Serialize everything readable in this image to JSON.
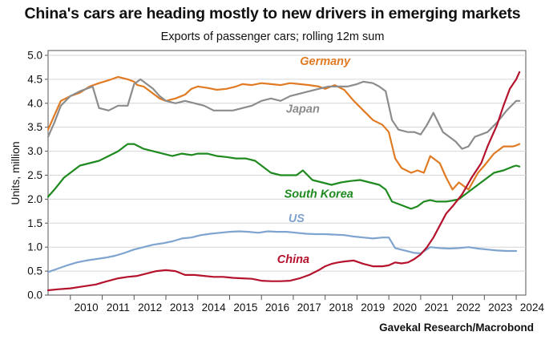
{
  "chart_data": {
    "type": "line",
    "title": "China's cars are heading mostly to new drivers in emerging markets",
    "subtitle": "Exports of passenger cars; rolling 12m sum",
    "ylabel": "Units, million",
    "source": "Gavekal Research/Macrobond",
    "ylim": [
      0.0,
      5.1
    ],
    "yticks": [
      0.0,
      0.5,
      1.0,
      1.5,
      2.0,
      2.5,
      3.0,
      3.5,
      4.0,
      4.5,
      5.0
    ],
    "ytick_labels": [
      "0.0",
      "0.5",
      "1.0",
      "1.5",
      "2.0",
      "2.5",
      "3.0",
      "3.5",
      "4.0",
      "4.5",
      "5.0"
    ],
    "xlim": [
      2009.3,
      2024.3
    ],
    "xticks": [
      2010,
      2011,
      2012,
      2013,
      2014,
      2015,
      2016,
      2017,
      2018,
      2019,
      2020,
      2021,
      2022,
      2023,
      2024
    ],
    "xtick_labels": [
      "2010",
      "2011",
      "2012",
      "2013",
      "2014",
      "2015",
      "2016",
      "2017",
      "2018",
      "2019",
      "2020",
      "2021",
      "2022",
      "2023",
      "2024"
    ],
    "grid": true,
    "series": [
      {
        "name": "Germany",
        "color": "#e07b24",
        "x": [
          2009.3,
          2009.5,
          2009.7,
          2010.0,
          2010.3,
          2010.6,
          2010.9,
          2011.2,
          2011.5,
          2011.8,
          2012.0,
          2012.1,
          2012.3,
          2012.5,
          2012.8,
          2013.0,
          2013.3,
          2013.6,
          2013.8,
          2014.0,
          2014.3,
          2014.6,
          2014.9,
          2015.2,
          2015.4,
          2015.7,
          2016.0,
          2016.3,
          2016.6,
          2016.9,
          2017.2,
          2017.5,
          2017.8,
          2018.0,
          2018.3,
          2018.6,
          2018.9,
          2019.2,
          2019.5,
          2019.8,
          2020.0,
          2020.2,
          2020.4,
          2020.7,
          2020.9,
          2021.1,
          2021.3,
          2021.6,
          2021.8,
          2022.0,
          2022.2,
          2022.5,
          2022.8,
          2023.0,
          2023.3,
          2023.6,
          2023.9,
          2024.0,
          2024.1
        ],
        "values": [
          3.45,
          3.75,
          4.05,
          4.15,
          4.22,
          4.35,
          4.42,
          4.48,
          4.55,
          4.5,
          4.45,
          4.38,
          4.35,
          4.25,
          4.1,
          4.05,
          4.1,
          4.18,
          4.3,
          4.35,
          4.32,
          4.28,
          4.3,
          4.35,
          4.4,
          4.38,
          4.42,
          4.4,
          4.38,
          4.42,
          4.4,
          4.38,
          4.35,
          4.3,
          4.38,
          4.28,
          4.05,
          3.85,
          3.65,
          3.55,
          3.4,
          2.85,
          2.65,
          2.55,
          2.6,
          2.55,
          2.9,
          2.75,
          2.45,
          2.2,
          2.35,
          2.2,
          2.55,
          2.7,
          2.95,
          3.1,
          3.1,
          3.12,
          3.15
        ]
      },
      {
        "name": "Japan",
        "color": "#8c8c8c",
        "x": [
          2009.3,
          2009.5,
          2009.7,
          2010.0,
          2010.3,
          2010.7,
          2010.9,
          2011.2,
          2011.5,
          2011.8,
          2012.0,
          2012.2,
          2012.4,
          2012.6,
          2012.8,
          2013.0,
          2013.3,
          2013.6,
          2013.9,
          2014.2,
          2014.5,
          2014.8,
          2015.1,
          2015.4,
          2015.7,
          2016.0,
          2016.3,
          2016.6,
          2016.9,
          2017.2,
          2017.5,
          2017.8,
          2018.1,
          2018.4,
          2018.7,
          2019.0,
          2019.2,
          2019.5,
          2019.7,
          2019.9,
          2020.1,
          2020.3,
          2020.6,
          2020.8,
          2021.0,
          2021.2,
          2021.4,
          2021.7,
          2021.9,
          2022.1,
          2022.3,
          2022.5,
          2022.7,
          2022.9,
          2023.1,
          2023.4,
          2023.7,
          2024.0,
          2024.1
        ],
        "values": [
          3.3,
          3.6,
          3.95,
          4.15,
          4.25,
          4.35,
          3.9,
          3.85,
          3.95,
          3.95,
          4.4,
          4.5,
          4.4,
          4.3,
          4.15,
          4.05,
          4.0,
          4.05,
          4.0,
          3.95,
          3.85,
          3.85,
          3.85,
          3.9,
          3.95,
          4.05,
          4.1,
          4.05,
          4.15,
          4.2,
          4.25,
          4.3,
          4.35,
          4.35,
          4.35,
          4.4,
          4.45,
          4.42,
          4.35,
          4.25,
          3.65,
          3.45,
          3.4,
          3.4,
          3.35,
          3.55,
          3.8,
          3.4,
          3.3,
          3.2,
          3.05,
          3.1,
          3.3,
          3.35,
          3.4,
          3.6,
          3.85,
          4.05,
          4.05
        ]
      },
      {
        "name": "South Korea",
        "color": "#1f8a1f",
        "x": [
          2009.3,
          2009.5,
          2009.8,
          2010.0,
          2010.3,
          2010.6,
          2010.9,
          2011.2,
          2011.5,
          2011.8,
          2012.0,
          2012.3,
          2012.6,
          2012.9,
          2013.2,
          2013.5,
          2013.8,
          2014.0,
          2014.3,
          2014.6,
          2014.9,
          2015.2,
          2015.5,
          2015.8,
          2016.0,
          2016.3,
          2016.6,
          2016.9,
          2017.1,
          2017.3,
          2017.6,
          2017.9,
          2018.2,
          2018.5,
          2018.8,
          2019.1,
          2019.4,
          2019.7,
          2019.9,
          2020.1,
          2020.3,
          2020.5,
          2020.7,
          2020.9,
          2021.1,
          2021.3,
          2021.5,
          2021.8,
          2022.0,
          2022.2,
          2022.4,
          2022.7,
          2023.0,
          2023.3,
          2023.6,
          2023.9,
          2024.0,
          2024.1
        ],
        "values": [
          2.05,
          2.2,
          2.45,
          2.55,
          2.7,
          2.75,
          2.8,
          2.9,
          3.0,
          3.15,
          3.15,
          3.05,
          3.0,
          2.95,
          2.9,
          2.95,
          2.92,
          2.95,
          2.95,
          2.9,
          2.88,
          2.85,
          2.85,
          2.8,
          2.7,
          2.55,
          2.5,
          2.5,
          2.5,
          2.6,
          2.4,
          2.35,
          2.3,
          2.35,
          2.38,
          2.4,
          2.35,
          2.3,
          2.2,
          1.95,
          1.9,
          1.85,
          1.8,
          1.85,
          1.95,
          1.98,
          1.95,
          1.95,
          1.97,
          2.0,
          2.1,
          2.25,
          2.4,
          2.55,
          2.6,
          2.68,
          2.7,
          2.68
        ]
      },
      {
        "name": "US",
        "color": "#7fa4cf",
        "x": [
          2009.3,
          2009.6,
          2009.9,
          2010.2,
          2010.5,
          2010.8,
          2011.1,
          2011.4,
          2011.7,
          2012.0,
          2012.3,
          2012.6,
          2012.9,
          2013.2,
          2013.5,
          2013.8,
          2014.1,
          2014.4,
          2014.7,
          2015.0,
          2015.3,
          2015.6,
          2015.9,
          2016.2,
          2016.5,
          2016.8,
          2017.1,
          2017.4,
          2017.7,
          2018.0,
          2018.3,
          2018.6,
          2018.9,
          2019.2,
          2019.5,
          2019.8,
          2020.0,
          2020.2,
          2020.5,
          2020.8,
          2021.0,
          2021.3,
          2021.6,
          2021.9,
          2022.2,
          2022.5,
          2022.8,
          2023.1,
          2023.4,
          2023.7,
          2024.0
        ],
        "values": [
          0.48,
          0.55,
          0.62,
          0.68,
          0.72,
          0.75,
          0.78,
          0.82,
          0.88,
          0.95,
          1.0,
          1.05,
          1.08,
          1.12,
          1.18,
          1.2,
          1.25,
          1.28,
          1.3,
          1.32,
          1.33,
          1.32,
          1.3,
          1.33,
          1.32,
          1.32,
          1.3,
          1.28,
          1.27,
          1.27,
          1.26,
          1.25,
          1.22,
          1.2,
          1.18,
          1.2,
          1.2,
          0.98,
          0.93,
          0.88,
          0.87,
          1.0,
          0.98,
          0.97,
          0.98,
          1.0,
          0.97,
          0.95,
          0.93,
          0.92,
          0.92
        ]
      },
      {
        "name": "China",
        "color": "#b5122d",
        "x": [
          2009.3,
          2009.6,
          2010.0,
          2010.4,
          2010.8,
          2011.1,
          2011.5,
          2011.8,
          2012.1,
          2012.4,
          2012.7,
          2013.0,
          2013.3,
          2013.6,
          2013.9,
          2014.2,
          2014.5,
          2014.8,
          2015.1,
          2015.4,
          2015.7,
          2016.0,
          2016.3,
          2016.6,
          2016.9,
          2017.2,
          2017.5,
          2017.8,
          2018.0,
          2018.2,
          2018.4,
          2018.6,
          2018.9,
          2019.2,
          2019.5,
          2019.8,
          2020.0,
          2020.2,
          2020.4,
          2020.6,
          2020.8,
          2021.0,
          2021.2,
          2021.4,
          2021.6,
          2021.8,
          2022.0,
          2022.3,
          2022.6,
          2022.9,
          2023.1,
          2023.4,
          2023.6,
          2023.8,
          2024.0,
          2024.1
        ],
        "values": [
          0.1,
          0.12,
          0.14,
          0.18,
          0.22,
          0.28,
          0.35,
          0.38,
          0.4,
          0.45,
          0.5,
          0.52,
          0.5,
          0.42,
          0.42,
          0.4,
          0.38,
          0.38,
          0.36,
          0.35,
          0.34,
          0.3,
          0.29,
          0.29,
          0.3,
          0.35,
          0.42,
          0.52,
          0.6,
          0.65,
          0.68,
          0.7,
          0.72,
          0.65,
          0.6,
          0.6,
          0.62,
          0.68,
          0.66,
          0.68,
          0.75,
          0.85,
          1.0,
          1.2,
          1.45,
          1.7,
          1.85,
          2.1,
          2.45,
          2.75,
          3.1,
          3.55,
          3.95,
          4.3,
          4.5,
          4.65
        ]
      }
    ],
    "annotations": [
      {
        "text": "Germany",
        "series": "Germany",
        "x": 2018.0,
        "y": 4.8
      },
      {
        "text": "Japan",
        "series": "Japan",
        "x": 2017.3,
        "y": 3.8
      },
      {
        "text": "South Korea",
        "series": "South Korea",
        "x": 2017.8,
        "y": 2.03
      },
      {
        "text": "US",
        "series": "US",
        "x": 2017.1,
        "y": 1.52
      },
      {
        "text": "China",
        "series": "China",
        "x": 2017.0,
        "y": 0.67
      }
    ]
  }
}
